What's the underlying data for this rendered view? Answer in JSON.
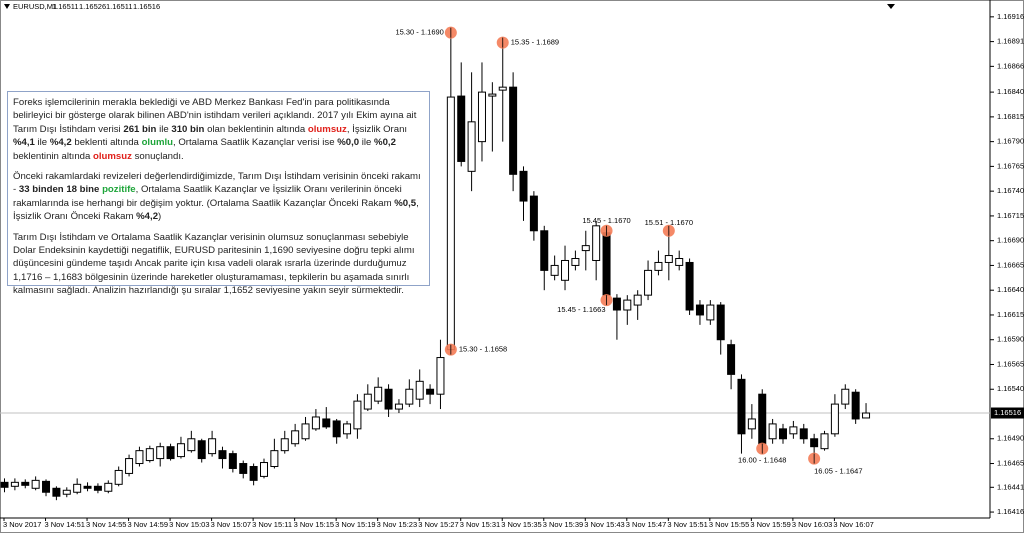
{
  "chart_data": {
    "type": "candlestick",
    "symbol": "EURUSD,M1",
    "categories": [
      "3 Nov 2017",
      null,
      null,
      null,
      "3 Nov 14:51",
      null,
      null,
      null,
      "3 Nov 14:55",
      null,
      null,
      null,
      "3 Nov 14:59",
      null,
      null,
      null,
      "3 Nov 15:03",
      null,
      null,
      null,
      "3 Nov 15:07",
      null,
      null,
      null,
      "3 Nov 15:11",
      null,
      null,
      null,
      "3 Nov 15:15",
      null,
      null,
      null,
      "3 Nov 15:19",
      null,
      null,
      null,
      "3 Nov 15:23",
      null,
      null,
      null,
      "3 Nov 15:27",
      null,
      null,
      null,
      "3 Nov 15:31",
      null,
      null,
      null,
      "3 Nov 15:35",
      null,
      null,
      null,
      "3 Nov 15:39",
      null,
      null,
      null,
      "3 Nov 15:43",
      null,
      null,
      null,
      "3 Nov 15:47",
      null,
      null,
      null,
      "3 Nov 15:51",
      null,
      null,
      null,
      "3 Nov 15:55",
      null,
      null,
      null,
      "3 Nov 15:59",
      null,
      null,
      null,
      "3 Nov 16:03",
      null,
      null,
      null,
      "3 Nov 16:07",
      null,
      null,
      null
    ],
    "open": [
      1.16446,
      1.16442,
      1.16446,
      1.1644,
      1.16447,
      1.1644,
      1.16434,
      1.16436,
      1.16442,
      1.16442,
      1.16437,
      1.16444,
      1.16455,
      1.16465,
      1.16468,
      1.1647,
      1.16482,
      1.16472,
      1.16478,
      1.16488,
      1.16475,
      1.16478,
      1.16475,
      1.16465,
      1.16462,
      1.16452,
      1.16462,
      1.16478,
      1.16485,
      1.1649,
      1.165,
      1.1651,
      1.16508,
      1.16495,
      1.165,
      1.1652,
      1.16528,
      1.1654,
      1.1652,
      1.16525,
      1.1653,
      1.1654,
      1.16535,
      1.1658,
      1.16836,
      1.1676,
      1.1679,
      1.16836,
      1.16842,
      1.16845,
      1.1676,
      1.16735,
      1.167,
      1.16655,
      1.1665,
      1.16665,
      1.1668,
      1.1667,
      1.16698,
      1.16632,
      1.1662,
      1.16625,
      1.16635,
      1.1666,
      1.16668,
      1.16665,
      1.16668,
      1.16625,
      1.1661,
      1.16625,
      1.16585,
      1.1655,
      1.165,
      1.16535,
      1.1649,
      1.165,
      1.16495,
      1.165,
      1.1649,
      1.1648,
      1.16495,
      1.16525,
      1.16537,
      1.16511
    ],
    "high": [
      1.1645,
      1.1645,
      1.16449,
      1.16452,
      1.16449,
      1.16442,
      1.16441,
      1.1645,
      1.16446,
      1.16445,
      1.16448,
      1.16462,
      1.16474,
      1.16482,
      1.16483,
      1.16486,
      1.16485,
      1.16492,
      1.16498,
      1.1649,
      1.16498,
      1.16482,
      1.16478,
      1.16468,
      1.16465,
      1.1647,
      1.1649,
      1.16498,
      1.16505,
      1.16512,
      1.1652,
      1.16522,
      1.1651,
      1.16508,
      1.16535,
      1.16545,
      1.16552,
      1.16545,
      1.1653,
      1.1655,
      1.1656,
      1.16545,
      1.1659,
      1.16903,
      1.1687,
      1.1686,
      1.1687,
      1.1685,
      1.1689,
      1.1686,
      1.16765,
      1.1674,
      1.16705,
      1.16675,
      1.16685,
      1.1668,
      1.167,
      1.1671,
      1.167,
      1.16636,
      1.16635,
      1.1664,
      1.1667,
      1.1668,
      1.167,
      1.1668,
      1.16672,
      1.1663,
      1.1663,
      1.16628,
      1.1659,
      1.16555,
      1.16525,
      1.1654,
      1.1651,
      1.16505,
      1.16508,
      1.16505,
      1.16495,
      1.16498,
      1.16535,
      1.16545,
      1.1654,
      1.16526
    ],
    "low": [
      1.16436,
      1.16438,
      1.1644,
      1.16438,
      1.16432,
      1.16428,
      1.16431,
      1.16434,
      1.16437,
      1.16435,
      1.16435,
      1.16442,
      1.16452,
      1.16462,
      1.16466,
      1.16462,
      1.16468,
      1.1647,
      1.16476,
      1.16466,
      1.16472,
      1.1646,
      1.16456,
      1.1645,
      1.16443,
      1.1645,
      1.1646,
      1.16475,
      1.16482,
      1.16488,
      1.16498,
      1.165,
      1.16485,
      1.1649,
      1.1649,
      1.16518,
      1.16525,
      1.16512,
      1.16516,
      1.16522,
      1.16522,
      1.16525,
      1.1652,
      1.1658,
      1.16765,
      1.1674,
      1.1677,
      1.1678,
      1.1679,
      1.1674,
      1.1671,
      1.1669,
      1.1664,
      1.1665,
      1.1664,
      1.1666,
      1.1666,
      1.1665,
      1.1663,
      1.1659,
      1.16605,
      1.1661,
      1.1663,
      1.16655,
      1.1665,
      1.1666,
      1.16615,
      1.16605,
      1.16605,
      1.16575,
      1.1654,
      1.16475,
      1.1649,
      1.1648,
      1.16485,
      1.16485,
      1.1649,
      1.16485,
      1.1647,
      1.16478,
      1.16492,
      1.1652,
      1.16505,
      1.16511
    ],
    "close": [
      1.16441,
      1.16446,
      1.16443,
      1.16448,
      1.16436,
      1.16432,
      1.16438,
      1.16444,
      1.1644,
      1.16438,
      1.16445,
      1.16458,
      1.1647,
      1.16478,
      1.1648,
      1.16482,
      1.1647,
      1.16485,
      1.1649,
      1.1647,
      1.1649,
      1.1647,
      1.1646,
      1.16455,
      1.16448,
      1.16466,
      1.16478,
      1.1649,
      1.16498,
      1.16505,
      1.16512,
      1.16502,
      1.16492,
      1.16505,
      1.16528,
      1.16535,
      1.16542,
      1.1652,
      1.16525,
      1.1654,
      1.16548,
      1.16535,
      1.16572,
      1.16835,
      1.1677,
      1.1681,
      1.1684,
      1.16838,
      1.16845,
      1.16757,
      1.1673,
      1.167,
      1.1666,
      1.16665,
      1.1667,
      1.16672,
      1.16685,
      1.16705,
      1.16635,
      1.1662,
      1.1663,
      1.16635,
      1.1666,
      1.16668,
      1.16675,
      1.16672,
      1.1662,
      1.16615,
      1.16625,
      1.1659,
      1.16555,
      1.16495,
      1.1651,
      1.16485,
      1.16505,
      1.1649,
      1.16502,
      1.1649,
      1.16482,
      1.16495,
      1.16525,
      1.1654,
      1.1651,
      1.16516
    ],
    "up_color": "#ffffff",
    "down_color": "#000000",
    "annotation_color": "#f47c56",
    "ylim": [
      1.1641,
      1.16933
    ],
    "yticks": [
      1.16916,
      1.16891,
      1.16866,
      {
        "value": 1.1684,
        "label": "1.16840"
      },
      1.16815,
      {
        "value": 1.1679,
        "label": "1.16790"
      },
      1.16765,
      {
        "value": 1.1674,
        "label": "1.16740"
      },
      1.16715,
      {
        "value": 1.1669,
        "label": "1.16690"
      },
      1.16665,
      {
        "value": 1.1664,
        "label": "1.16640"
      },
      1.16615,
      {
        "value": 1.1659,
        "label": "1.16590"
      },
      1.16565,
      {
        "value": 1.1654,
        "label": "1.16540"
      },
      {
        "value": 1.1649,
        "label": "1.16490"
      },
      1.16465,
      1.16441,
      1.16416
    ],
    "annotations": [
      {
        "text": "15.30 - 1.1690",
        "x": 43,
        "y": 1.169
      },
      {
        "text": "15.35 - 1.1689",
        "x": 48,
        "y": 1.1689
      },
      {
        "text": "15.30 - 1.1658",
        "x": 43,
        "y": 1.1658
      },
      {
        "text": "15.45  - 1.1670",
        "x": 58,
        "y": 1.167
      },
      {
        "text": "15.45 - 1.1663",
        "x": 58,
        "y": 1.1663
      },
      {
        "text": "15.51 - 1.1670",
        "x": 64,
        "y": 1.167
      },
      {
        "text": "16.00 - 1.1648",
        "x": 73,
        "y": 1.1648
      },
      {
        "text": "16.05 - 1.1647",
        "x": 78,
        "y": 1.1647
      }
    ]
  },
  "text_box": {
    "paragraphs": [
      [
        {
          "text": "Foreks işlemcilerinin merakla beklediği ve ABD Merkez Bankası Fed'in para politikasında belirleyici bir gösterge olarak bilinen ABD'nin istihdam verileri açıklandı. 2017 yılı Ekim ayına ait Tarım Dışı İstihdam verisi "
        },
        {
          "text": "261 bin",
          "style": "bold"
        },
        {
          "text": " ile "
        },
        {
          "text": "310 bin",
          "style": "bold"
        },
        {
          "text": " olan beklentinin altında "
        },
        {
          "text": "olumsuz",
          "style": "red"
        },
        {
          "text": ", İşsizlik Oranı "
        },
        {
          "text": "%4,1",
          "style": "bold"
        },
        {
          "text": " ile "
        },
        {
          "text": "%4,2",
          "style": "bold"
        },
        {
          "text": " beklenti altında "
        },
        {
          "text": "olumlu",
          "style": "green"
        },
        {
          "text": ", Ortalama Saatlik Kazançlar verisi ise "
        },
        {
          "text": "%0,0",
          "style": "bold"
        },
        {
          "text": " ile "
        },
        {
          "text": "%0,2",
          "style": "bold"
        },
        {
          "text": " beklentinin altında "
        },
        {
          "text": "olumsuz",
          "style": "red"
        },
        {
          "text": " sonuçlandı."
        }
      ],
      [
        {
          "text": "Önceki rakamlardaki revizeleri değerlendirdiğimizde, Tarım Dışı İstihdam verisinin önceki rakamı - "
        },
        {
          "text": "33 binden 18 bine",
          "style": "bold"
        },
        {
          "text": " "
        },
        {
          "text": "pozitife",
          "style": "green"
        },
        {
          "text": ",  Ortalama Saatlik Kazançlar ve İşsizlik Oranı verilerinin önceki rakamlarında ise herhangi bir değişim yoktur. (Ortalama Saatlik Kazançlar Önceki Rakam "
        },
        {
          "text": "%0,5",
          "style": "bold"
        },
        {
          "text": ", İşsizlik Oranı Önceki Rakam "
        },
        {
          "text": "%4,2",
          "style": "bold"
        },
        {
          "text": ")"
        }
      ],
      [
        {
          "text": "Tarım Dışı İstihdam ve Ortalama Saatlik Kazançlar verisinin olumsuz sonuçlanması sebebiyle Dolar Endeksinin kaydettiği negatiflik, EURUSD paritesinin 1,1690 seviyesine doğru tepki alımı düşüncesini gündeme taşıdı Ancak parite için kısa vadeli olarak ısrarla üzerinde durduğumuz 1,1716 – 1,1683 bölgesinin üzerinde hareketler oluşturamaması, tepkilerin bu aşamada sınırlı kalmasını sağladı. Analizin hazırlandığı şu sıralar 1,1652 seviyesine yakın seyir sürmektedir."
        }
      ]
    ]
  }
}
